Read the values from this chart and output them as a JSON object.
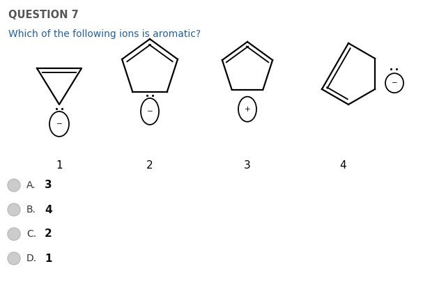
{
  "title": "QUESTION 7",
  "question": "Which of the following ions is aromatic?",
  "title_color": "#555555",
  "question_color": "#2060a0",
  "bg_color": "#ffffff",
  "struct_labels": [
    "1",
    "2",
    "3",
    "4"
  ],
  "choices": [
    "A.",
    "B.",
    "C.",
    "D."
  ],
  "choice_labels": [
    "3",
    "4",
    "2",
    "1"
  ],
  "lw": 1.6
}
